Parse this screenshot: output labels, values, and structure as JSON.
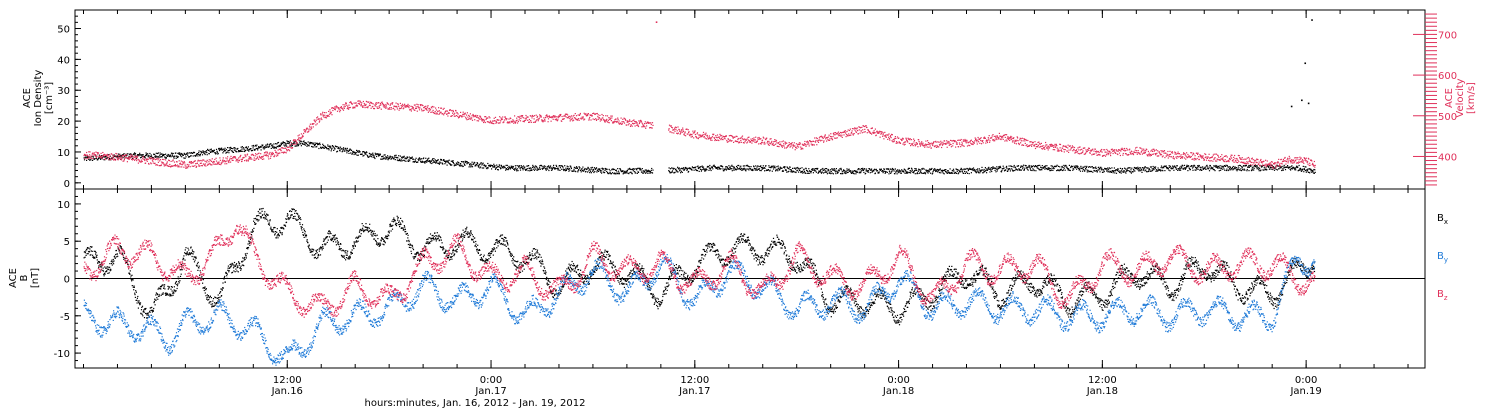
{
  "colors": {
    "black": "#000000",
    "red": "#e0305a",
    "blue": "#1e7ad8"
  },
  "x_axis": {
    "title": "hours:minutes, Jan. 16, 2012 - Jan. 19, 2012",
    "ticks": [
      {
        "hour": 12,
        "time": "12:00",
        "date": "Jan.16"
      },
      {
        "hour": 24,
        "time": "0:00",
        "date": "Jan.17"
      },
      {
        "hour": 36,
        "time": "12:00",
        "date": "Jan.17"
      },
      {
        "hour": 48,
        "time": "0:00",
        "date": "Jan.18"
      },
      {
        "hour": 60,
        "time": "12:00",
        "date": "Jan.18"
      },
      {
        "hour": 72,
        "time": "0:00",
        "date": "Jan.19"
      }
    ]
  },
  "chart_data": [
    {
      "type": "scatter",
      "panel": "top",
      "xrange_hours_since_jan16": [
        -0.5,
        79
      ],
      "left_axis": {
        "label_lines": [
          "ACE",
          "Ion Density",
          "[cm⁻³]"
        ],
        "ylim": [
          -2,
          56
        ],
        "ticks": [
          "0",
          "10",
          "20",
          "30",
          "40",
          "50"
        ]
      },
      "right_axis": {
        "label_lines": [
          "ACE",
          "Velocity",
          "[km/s]"
        ],
        "ylim": [
          320,
          760
        ],
        "ticks": [
          "400",
          "500",
          "600",
          "700"
        ]
      },
      "series": [
        {
          "axis": "left",
          "color": "black",
          "x": [
            0,
            3,
            6,
            7,
            9,
            11,
            12,
            13,
            14,
            15,
            17,
            19,
            21,
            23,
            25,
            28,
            31,
            34,
            37,
            40,
            43,
            46,
            49,
            52,
            55,
            58,
            61,
            64,
            67,
            70,
            71.5,
            72.5
          ],
          "y": [
            8,
            9,
            9,
            10,
            11,
            12,
            13,
            13,
            12,
            11,
            9,
            8,
            7,
            6,
            5,
            5,
            4,
            4,
            5,
            5,
            4,
            4,
            4,
            4,
            5,
            5,
            4,
            5,
            5,
            5,
            5,
            4
          ]
        },
        {
          "axis": "right",
          "color": "red",
          "x": [
            0,
            2,
            4,
            6,
            8,
            10,
            11,
            12,
            13,
            14,
            15,
            16,
            18,
            20,
            22,
            24,
            27,
            30,
            32,
            34,
            36,
            38,
            40,
            42,
            44,
            46,
            48,
            50,
            52,
            54,
            56,
            58,
            60,
            62,
            64,
            66,
            68,
            70,
            71,
            72,
            72.5
          ],
          "y": [
            405,
            400,
            390,
            380,
            390,
            400,
            405,
            420,
            460,
            500,
            520,
            530,
            525,
            520,
            505,
            490,
            495,
            500,
            485,
            475,
            455,
            445,
            440,
            425,
            450,
            470,
            440,
            430,
            435,
            450,
            430,
            420,
            410,
            415,
            405,
            400,
            395,
            380,
            395,
            390,
            380
          ]
        }
      ],
      "outliers": [
        {
          "axis": "right",
          "color": "red",
          "x": 33.7,
          "y": 732
        },
        {
          "axis": "left",
          "color": "black",
          "x": 72.3,
          "y": 53
        },
        {
          "axis": "left",
          "color": "black",
          "x": 71.9,
          "y": 39
        },
        {
          "axis": "left",
          "color": "black",
          "x": 71.1,
          "y": 25
        },
        {
          "axis": "left",
          "color": "black",
          "x": 71.7,
          "y": 27
        },
        {
          "axis": "left",
          "color": "black",
          "x": 72.1,
          "y": 26
        }
      ]
    },
    {
      "type": "scatter",
      "panel": "bottom",
      "xrange_hours_since_jan16": [
        -0.5,
        79
      ],
      "left_axis": {
        "label_lines": [
          "ACE",
          "B",
          "[nT]"
        ],
        "ylim": [
          -12,
          12
        ],
        "ticks": [
          "-10",
          "-5",
          "0",
          "5",
          "10"
        ],
        "zero_line": true
      },
      "series": [
        {
          "name": "Bx",
          "color": "black",
          "x": [
            0,
            2,
            4,
            6,
            8,
            10,
            12,
            14,
            16,
            18,
            20,
            22,
            24,
            26,
            28,
            30,
            32,
            34,
            36,
            38,
            40,
            42,
            44,
            46,
            48,
            50,
            52,
            54,
            56,
            58,
            60,
            62,
            64,
            66,
            68,
            70,
            72.5
          ],
          "y": [
            2,
            3,
            -5,
            3,
            -3,
            7,
            8,
            4,
            5,
            7,
            4,
            5,
            4,
            3,
            -1,
            2,
            1,
            -2,
            2,
            4,
            4,
            3,
            -3,
            -3,
            -4,
            -2,
            1,
            -2,
            0,
            -3,
            -2,
            1,
            -1,
            2,
            -1,
            -2,
            3
          ]
        },
        {
          "name": "By",
          "color": "blue",
          "x": [
            0,
            2,
            4,
            5,
            6,
            8,
            10,
            11,
            12,
            14,
            16,
            18,
            20,
            22,
            24,
            26,
            28,
            30,
            32,
            34,
            36,
            38,
            40,
            42,
            44,
            46,
            48,
            50,
            52,
            54,
            56,
            58,
            60,
            62,
            64,
            66,
            68,
            70,
            71.5,
            72.5
          ],
          "y": [
            -5,
            -6,
            -7,
            -8,
            -6,
            -5,
            -7,
            -9,
            -11,
            -6,
            -5,
            -4,
            -1,
            -3,
            -1,
            -5,
            -2,
            1,
            -2,
            2,
            -3,
            1,
            -1,
            -4,
            -3,
            -4,
            0,
            -4,
            -3,
            -4,
            -4,
            -5,
            -5,
            -4,
            -5,
            -4,
            -5,
            -5,
            3,
            2
          ]
        },
        {
          "name": "Bz",
          "color": "red",
          "x": [
            0,
            2,
            4,
            6,
            8,
            9,
            10,
            12,
            14,
            16,
            18,
            20,
            22,
            24,
            26,
            28,
            30,
            32,
            34,
            36,
            38,
            40,
            42,
            44,
            46,
            48,
            50,
            52,
            54,
            56,
            58,
            60,
            62,
            64,
            66,
            68,
            70,
            72.5
          ],
          "y": [
            1,
            4,
            3,
            0,
            4,
            8,
            3,
            -2,
            -4,
            -1,
            -3,
            2,
            4,
            0,
            1,
            -2,
            3,
            1,
            2,
            -1,
            2,
            -2,
            3,
            0,
            -1,
            3,
            -3,
            2,
            1,
            2,
            -3,
            2,
            1,
            3,
            1,
            2,
            2,
            -1
          ]
        }
      ],
      "legend": [
        {
          "base": "B",
          "sub": "x",
          "color": "black"
        },
        {
          "base": "B",
          "sub": "y",
          "color": "blue"
        },
        {
          "base": "B",
          "sub": "z",
          "color": "red"
        }
      ]
    }
  ]
}
